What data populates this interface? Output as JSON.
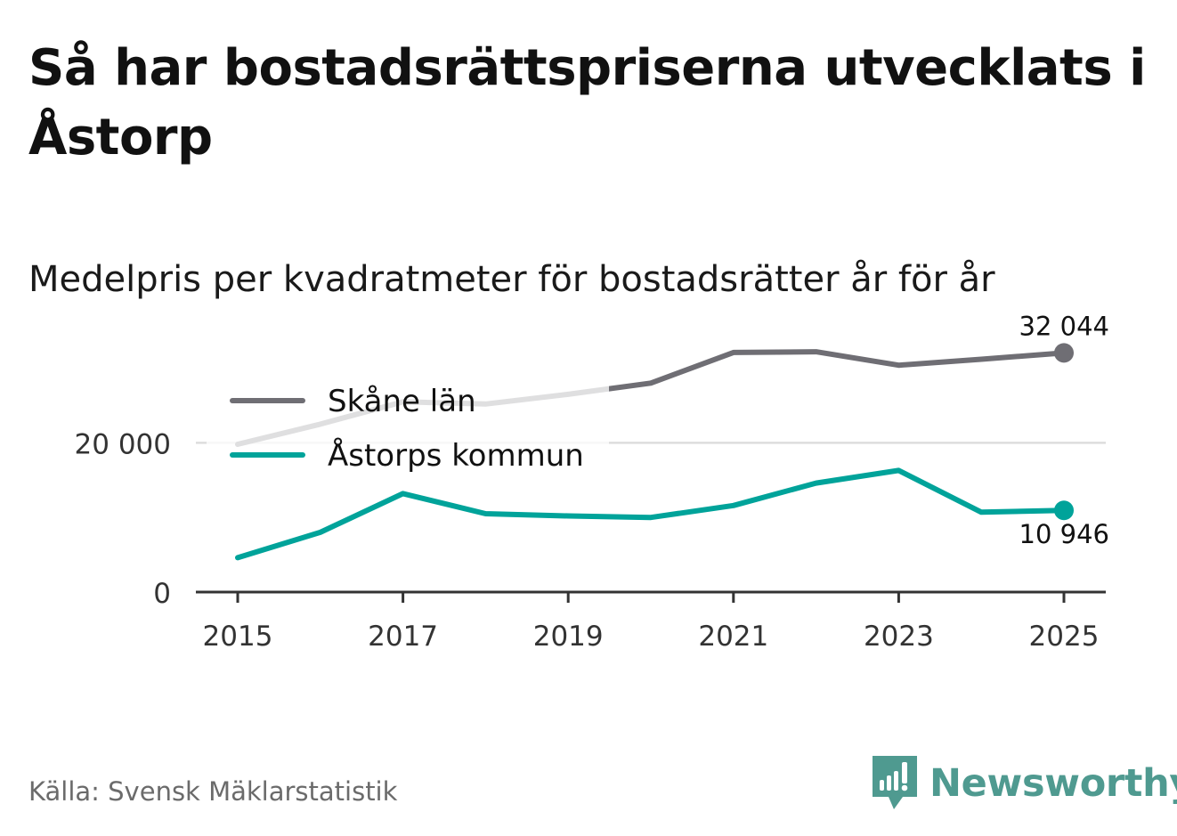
{
  "title": "Så har bostadsrättspriserna utvecklats i Åstorp",
  "subtitle": "Medelpris per kvadratmeter för bostadsrätter år för år",
  "source": "Källa: Svensk Mäklarstatistik",
  "brand": {
    "name": "Newsworthy",
    "icon": "newsworthy-logo-icon",
    "color": "#4f9a90"
  },
  "chart_data": {
    "type": "line",
    "title": "Medelpris per kvadratmeter för bostadsrätter år för år",
    "xlabel": "",
    "ylabel": "",
    "x": [
      2015,
      2016,
      2017,
      2018,
      2019,
      2020,
      2021,
      2022,
      2023,
      2024,
      2025
    ],
    "x_ticks": [
      2015,
      2017,
      2019,
      2021,
      2023,
      2025
    ],
    "x_tick_labels": [
      "2015",
      "2017",
      "2019",
      "2021",
      "2023",
      "2025"
    ],
    "y_ticks": [
      0,
      20000
    ],
    "y_tick_labels": [
      "0",
      "20 000"
    ],
    "ylim": [
      0,
      34000
    ],
    "grid": true,
    "legend_position": "top-left",
    "series": [
      {
        "name": "Skåne län",
        "color": "#6f6e74",
        "values": [
          19800,
          22500,
          25500,
          25200,
          26500,
          28000,
          32100,
          32200,
          30400,
          31200,
          32044
        ],
        "end_label": "32 044"
      },
      {
        "name": "Åstorps kommun",
        "color": "#00a39a",
        "values": [
          4600,
          8000,
          13200,
          10500,
          10200,
          10000,
          11600,
          14600,
          16300,
          10700,
          10946
        ],
        "end_label": "10 946"
      }
    ]
  }
}
